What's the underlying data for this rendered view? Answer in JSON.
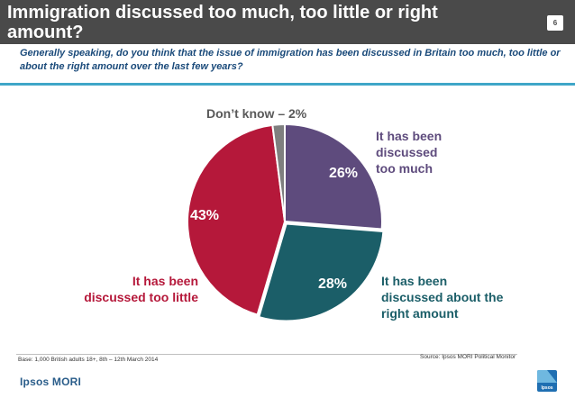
{
  "header": {
    "title": "Immigration discussed too much, too little or right amount?",
    "page_number": "6",
    "subtitle": "Generally speaking, do you think that the issue of immigration has been discussed in Britain too much, too little or about the right amount over the last few years?"
  },
  "chart_data": {
    "type": "pie",
    "title": "Immigration discussed too much, too little or right amount?",
    "slices": [
      {
        "label_lines": [
          "It has been",
          "discussed",
          "too much"
        ],
        "value": 26,
        "value_label": "26%",
        "color": "#5e4b7d"
      },
      {
        "label_lines": [
          "It has been",
          "discussed about the",
          "right amount"
        ],
        "value": 28,
        "value_label": "28%",
        "color": "#1b5e68"
      },
      {
        "label_lines": [
          "It has been",
          "discussed too little"
        ],
        "value": 43,
        "value_label": "43%",
        "color": "#b5183a"
      },
      {
        "label_lines": [
          "Don’t know – 2%"
        ],
        "value": 2,
        "value_label": "",
        "color": "#7f7f7f"
      }
    ]
  },
  "footer": {
    "base": "Base: 1,000 British adults 18+, 8th – 12th March 2014",
    "source": "Source: Ipsos MORI Political Monitor",
    "logo_text": "Ipsos MORI",
    "logo_badge": "Ipsos"
  }
}
